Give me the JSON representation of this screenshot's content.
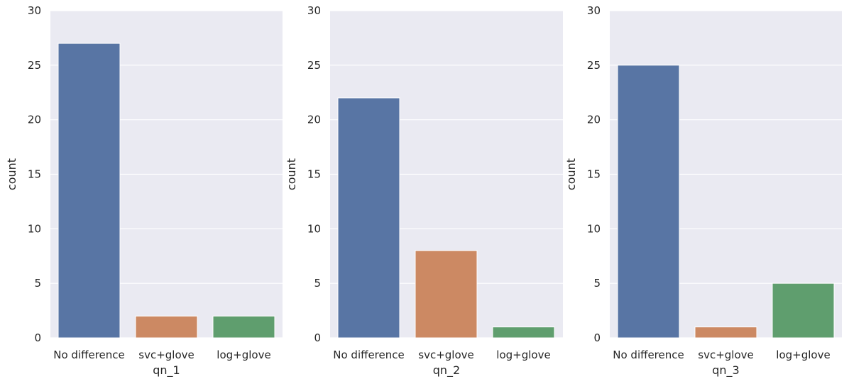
{
  "chart_data": [
    {
      "type": "bar",
      "categories": [
        "No difference",
        "svc+glove",
        "log+glove"
      ],
      "values": [
        27,
        2,
        2
      ],
      "xlabel": "qn_1",
      "ylabel": "count",
      "ylim": [
        0,
        30
      ],
      "yticks": [
        0,
        5,
        10,
        15,
        20,
        25,
        30
      ],
      "grid": true,
      "colors": [
        "#5875a4",
        "#cc8963",
        "#5f9e6e"
      ],
      "background": "#eaeaf2"
    },
    {
      "type": "bar",
      "categories": [
        "No difference",
        "svc+glove",
        "log+glove"
      ],
      "values": [
        22,
        8,
        1
      ],
      "xlabel": "qn_2",
      "ylabel": "count",
      "ylim": [
        0,
        30
      ],
      "yticks": [
        0,
        5,
        10,
        15,
        20,
        25,
        30
      ],
      "grid": true,
      "colors": [
        "#5875a4",
        "#cc8963",
        "#5f9e6e"
      ],
      "background": "#eaeaf2"
    },
    {
      "type": "bar",
      "categories": [
        "No difference",
        "svc+glove",
        "log+glove"
      ],
      "values": [
        25,
        1,
        5
      ],
      "xlabel": "qn_3",
      "ylabel": "count",
      "ylim": [
        0,
        30
      ],
      "yticks": [
        0,
        5,
        10,
        15,
        20,
        25,
        30
      ],
      "grid": true,
      "colors": [
        "#5875a4",
        "#cc8963",
        "#5f9e6e"
      ],
      "background": "#eaeaf2"
    }
  ]
}
